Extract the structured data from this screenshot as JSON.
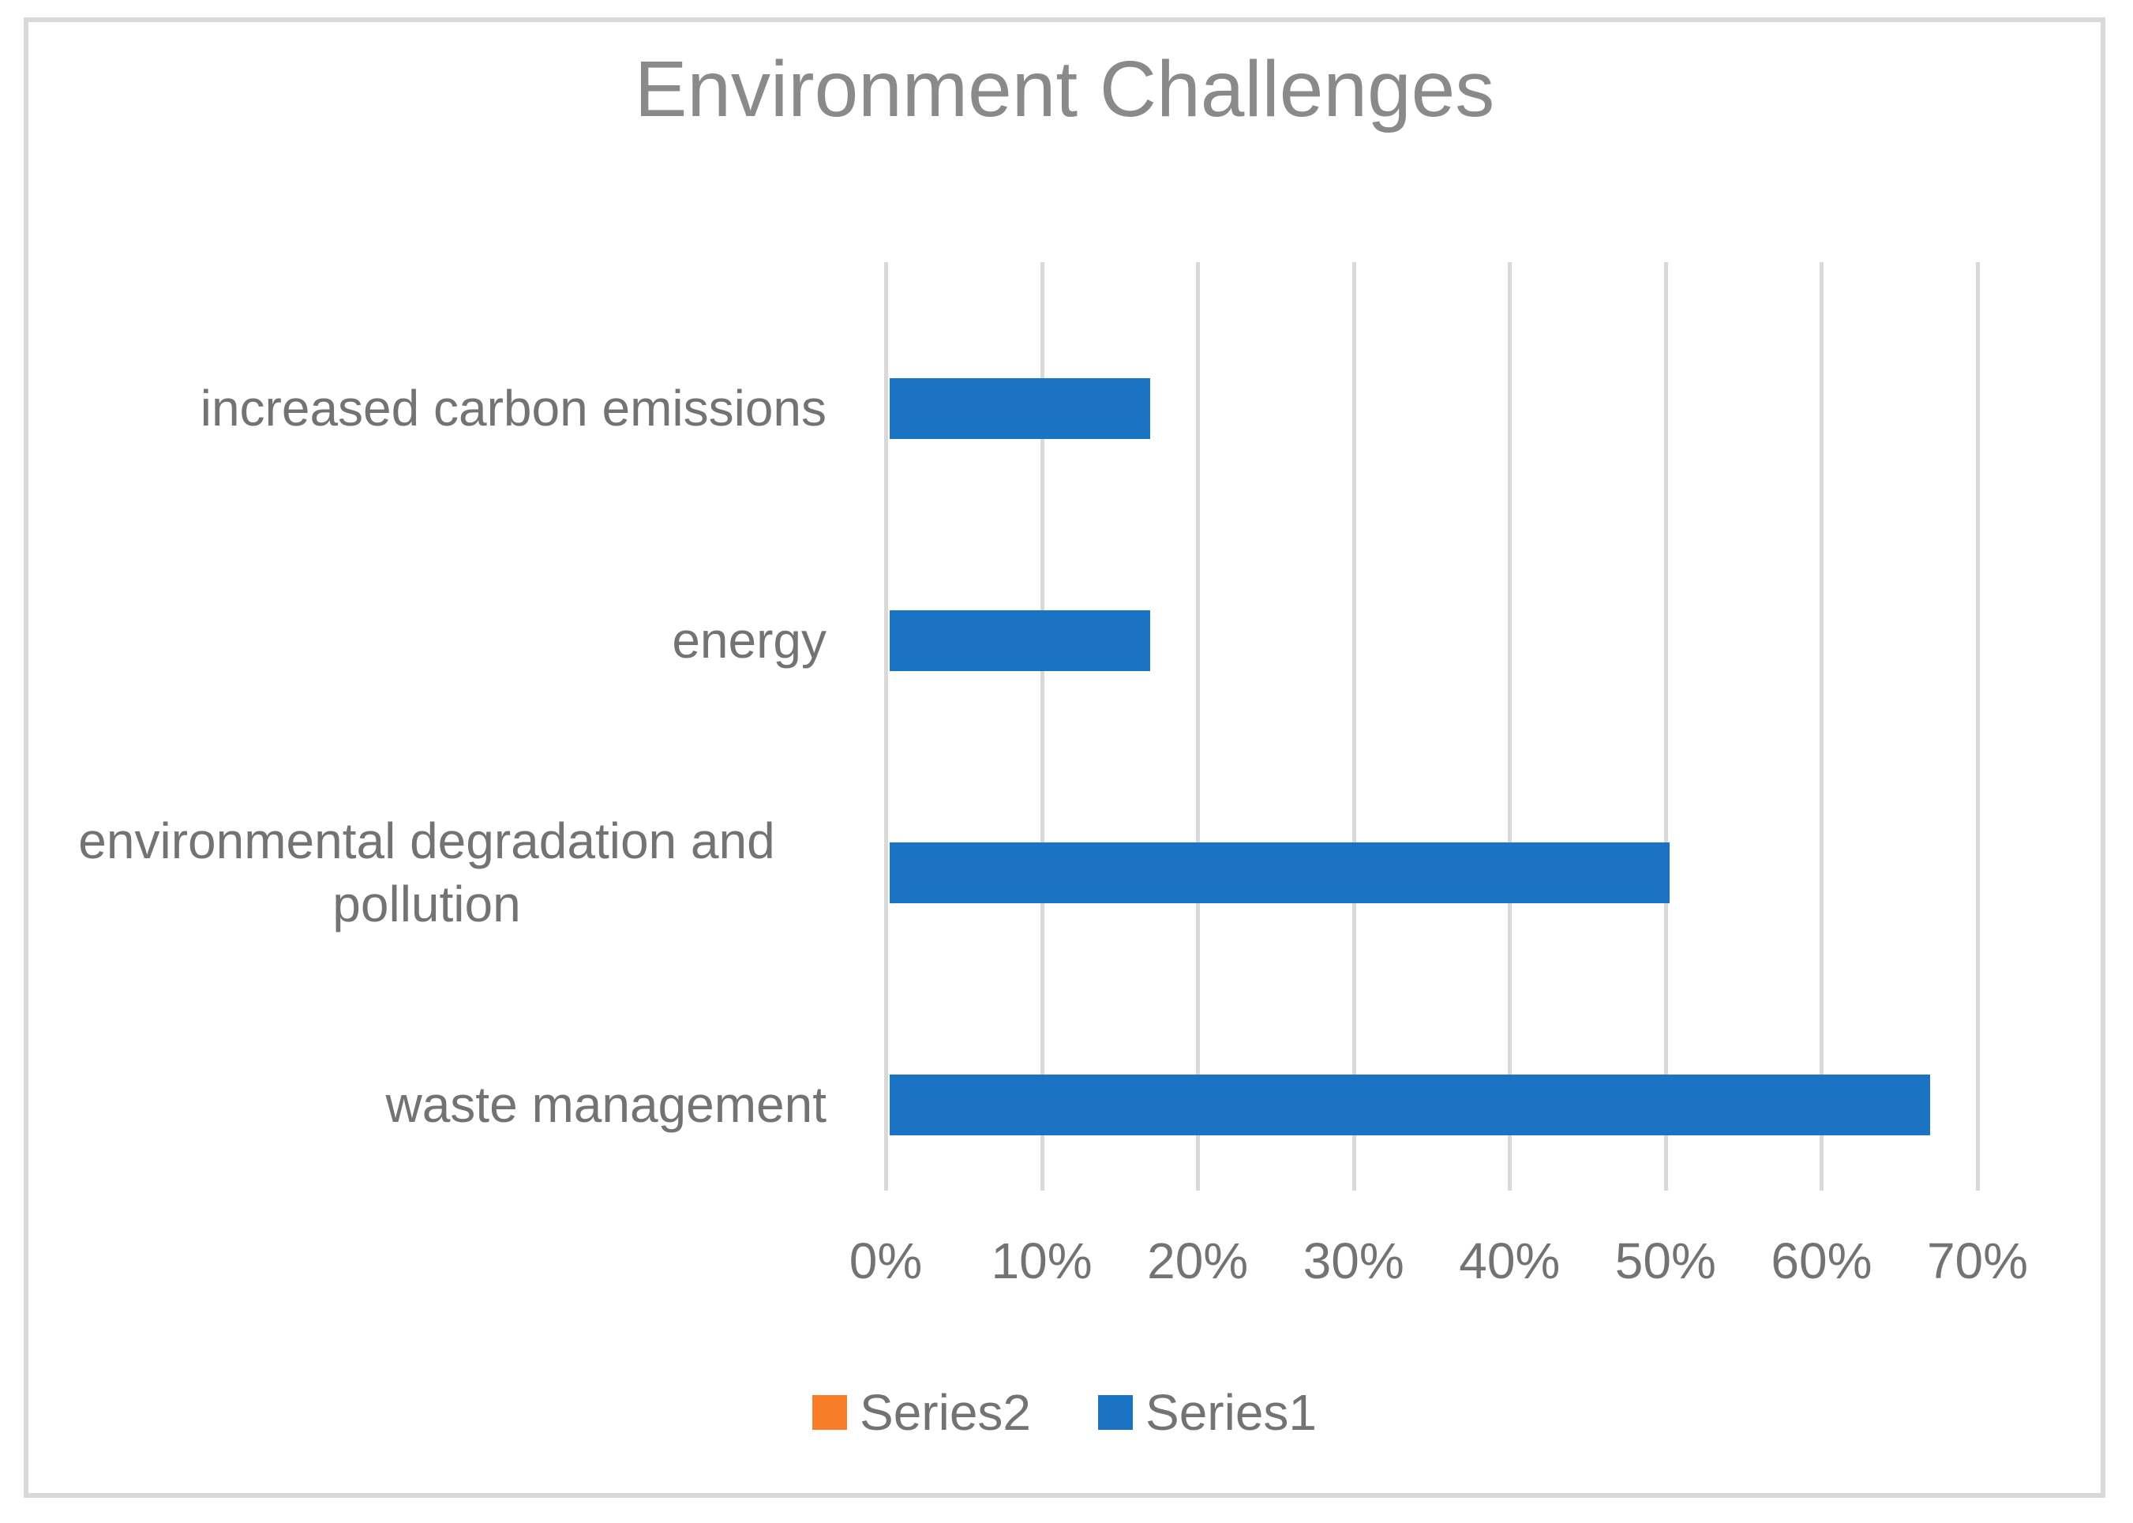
{
  "chart_data": {
    "type": "bar",
    "orientation": "horizontal",
    "title": "Environment Challenges",
    "categories": [
      "increased carbon emissions",
      "energy",
      "environmental degradation and pollution",
      "waste management"
    ],
    "series": [
      {
        "name": "Series1",
        "color": "#1B73C4",
        "values": [
          16.7,
          16.7,
          50,
          66.7
        ]
      },
      {
        "name": "Series2",
        "color": "#F97D26",
        "values": [
          0,
          0,
          0,
          0
        ]
      }
    ],
    "x_ticks": [
      "0%",
      "10%",
      "20%",
      "30%",
      "40%",
      "50%",
      "60%",
      "70%"
    ],
    "xlim": [
      0,
      70
    ],
    "grid": true,
    "gridline_color": "#D9D9D9",
    "frame_border_color": "#D9D9D9",
    "title_color": "#8A8A8A",
    "label_color": "#737373",
    "legend_position": "bottom",
    "legend": [
      {
        "label": "Series2",
        "color": "#F97D26"
      },
      {
        "label": "Series1",
        "color": "#1B73C4"
      }
    ]
  }
}
